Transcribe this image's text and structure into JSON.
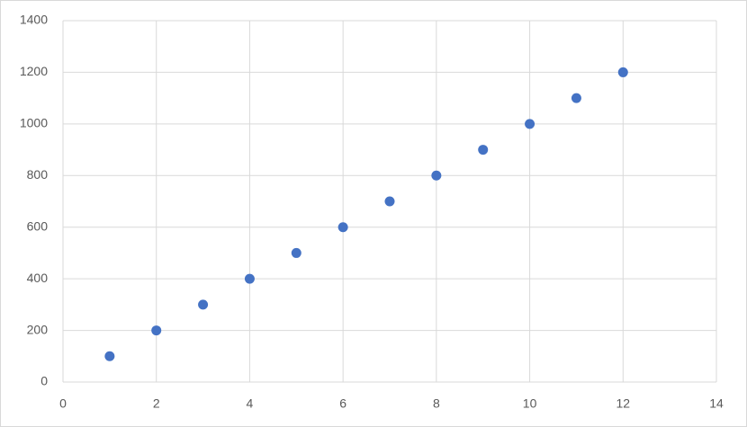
{
  "chart_data": {
    "type": "scatter",
    "x": [
      1,
      2,
      3,
      4,
      5,
      6,
      7,
      8,
      9,
      10,
      11,
      12
    ],
    "values": [
      100,
      200,
      300,
      400,
      500,
      600,
      700,
      800,
      900,
      1000,
      1100,
      1200
    ],
    "color": "#4472c4",
    "xlim": [
      0,
      14
    ],
    "xticks": [
      0,
      2,
      4,
      6,
      8,
      10,
      12,
      14
    ],
    "ylim": [
      0,
      1400
    ],
    "yticks": [
      0,
      200,
      400,
      600,
      800,
      1000,
      1200,
      1400
    ],
    "grid": true
  }
}
